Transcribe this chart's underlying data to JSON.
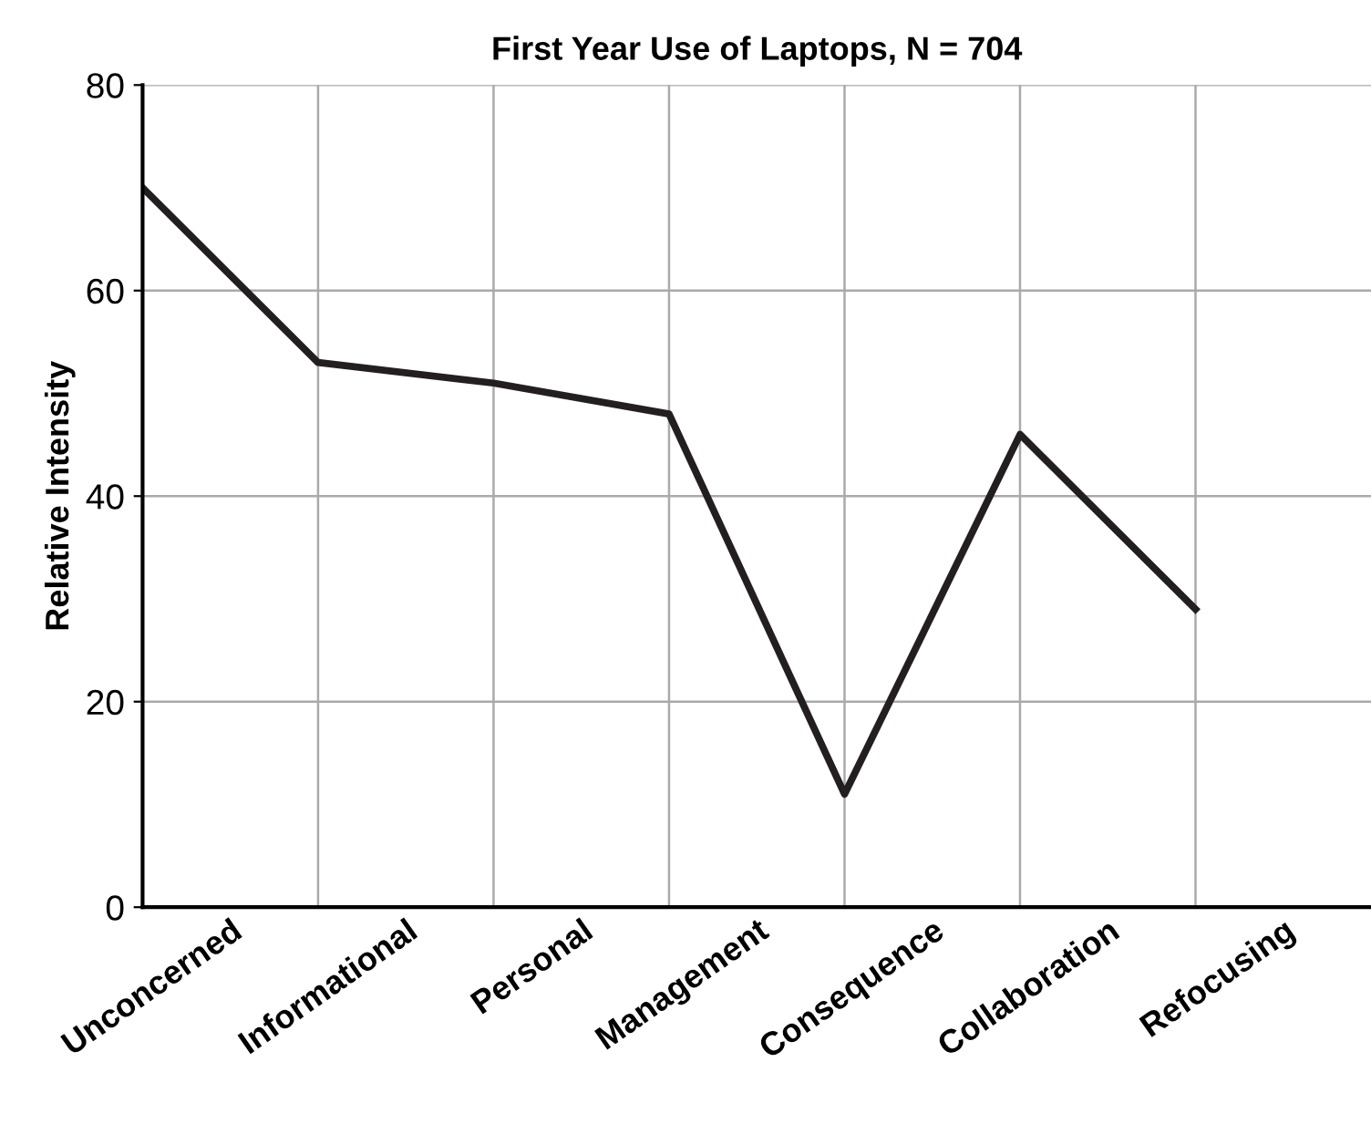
{
  "chart_data": {
    "type": "line",
    "title": "First Year Use of Laptops, N = 704",
    "ylabel": "Relative Intensity",
    "categories": [
      "Unconcerned",
      "Informational",
      "Personal",
      "Management",
      "Consequence",
      "Collaboration",
      "Refocusing"
    ],
    "values": [
      70,
      53,
      51,
      48,
      11,
      46,
      29
    ],
    "color": "#231f20",
    "ylim": [
      0,
      80
    ],
    "yticks": [
      0,
      20,
      40,
      60,
      80
    ],
    "grid": true,
    "marker": "none",
    "line_style": "solid"
  }
}
